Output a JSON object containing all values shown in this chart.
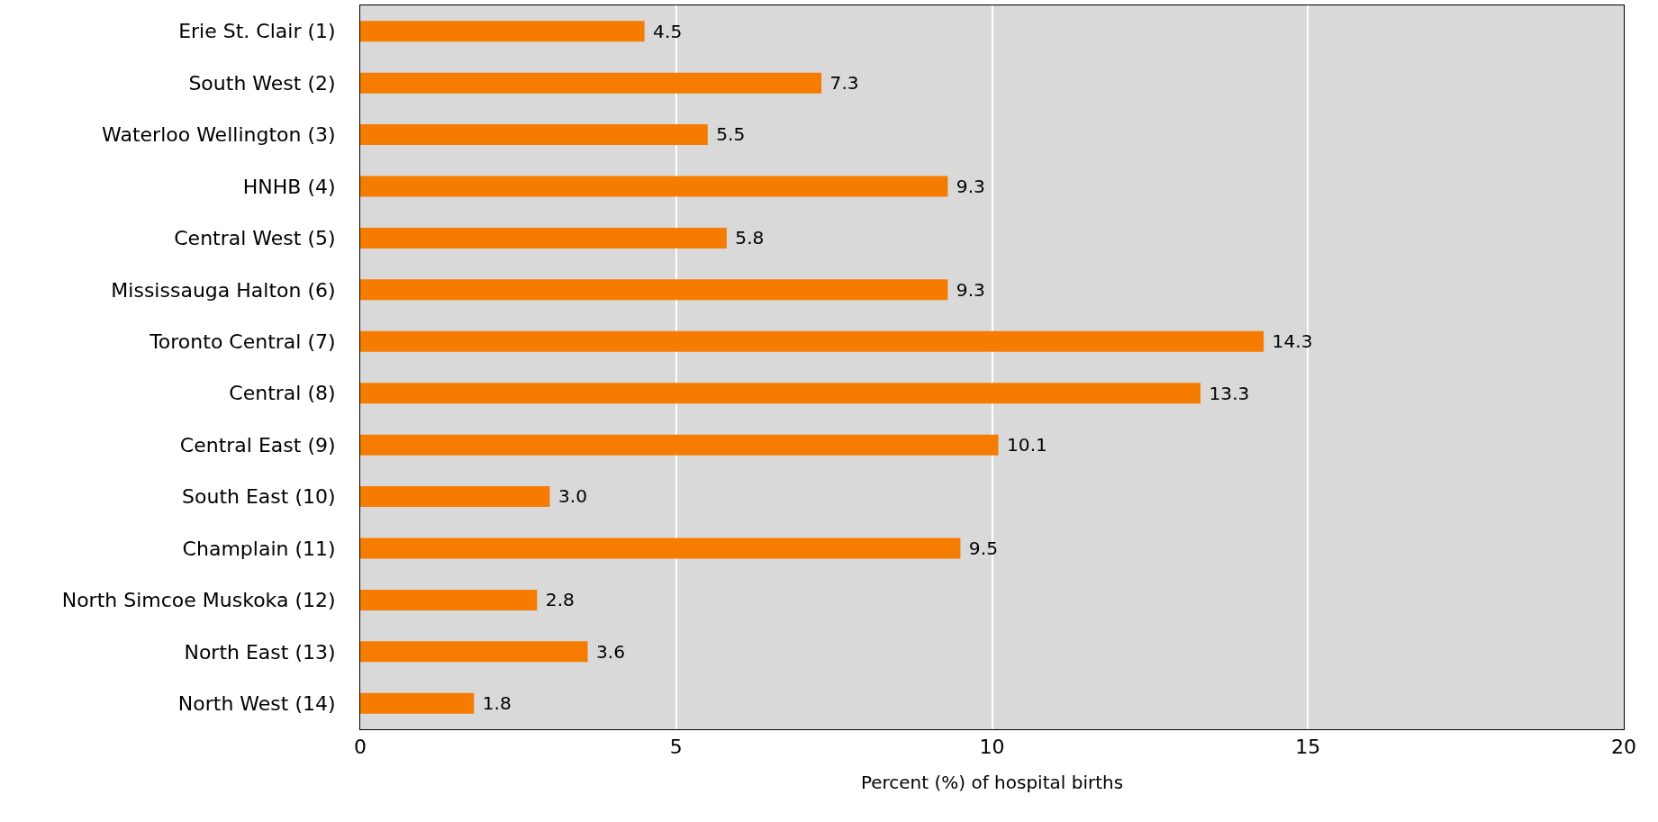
{
  "chart_data": {
    "type": "bar",
    "orientation": "horizontal",
    "xlabel": "Percent (%) of hospital births",
    "categories": [
      "Erie St. Clair (1)",
      "South West (2)",
      "Waterloo Wellington (3)",
      "HNHB (4)",
      "Central West (5)",
      "Mississauga Halton (6)",
      "Toronto Central (7)",
      "Central (8)",
      "Central East (9)",
      "South East (10)",
      "Champlain (11)",
      "North Simcoe Muskoka (12)",
      "North East (13)",
      "North West (14)"
    ],
    "values": [
      4.5,
      7.3,
      5.5,
      9.3,
      5.8,
      9.3,
      14.3,
      13.3,
      10.1,
      3.0,
      9.5,
      2.8,
      3.6,
      1.8
    ],
    "value_labels": [
      "4.5",
      "7.3",
      "5.5",
      "9.3",
      "5.8",
      "9.3",
      "14.3",
      "13.3",
      "10.1",
      "3.0",
      "9.5",
      "2.8",
      "3.6",
      "1.8"
    ],
    "color": "#f57c00",
    "xlim": [
      0,
      20
    ],
    "xticks": [
      0,
      5,
      10,
      15,
      20
    ],
    "grid": "x"
  }
}
